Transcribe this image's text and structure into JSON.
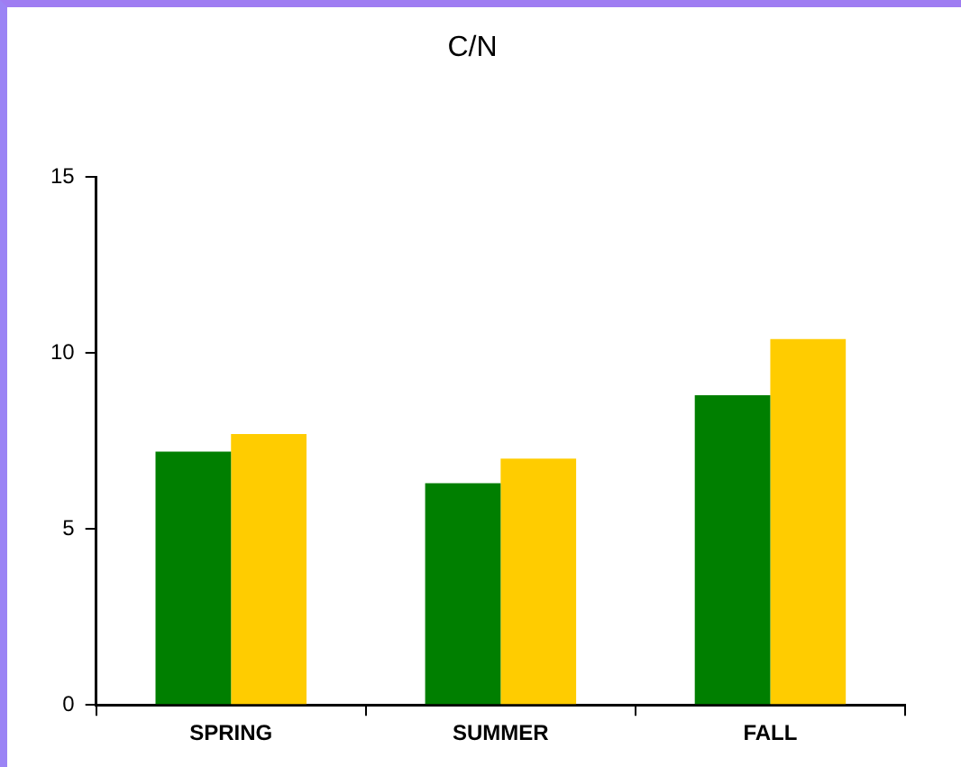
{
  "chart_data": {
    "type": "bar",
    "title": "C/N",
    "categories": [
      "SPRING",
      "SUMMER",
      "FALL"
    ],
    "series": [
      {
        "color": "#007f00",
        "values": [
          7.2,
          6.3,
          8.8
        ]
      },
      {
        "color": "#ffcc00",
        "values": [
          7.7,
          7.0,
          10.4
        ]
      }
    ],
    "ylim": [
      0,
      15
    ],
    "yticks": [
      0,
      5,
      10,
      15
    ],
    "grid": false,
    "legend": false
  }
}
